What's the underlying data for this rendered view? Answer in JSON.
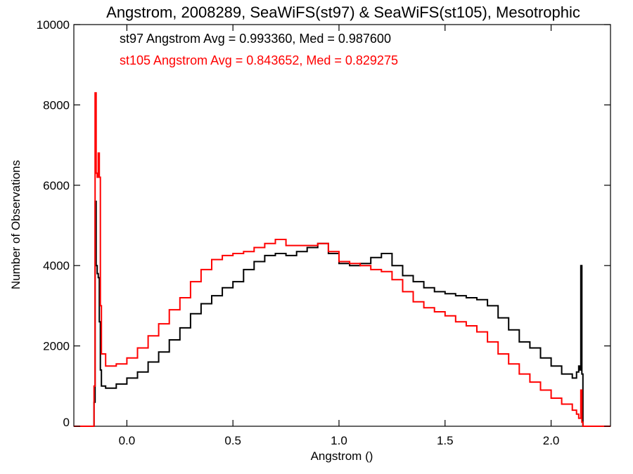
{
  "chart_data": {
    "type": "line",
    "title": "Angstrom, 2008289, SeaWiFS(st97) & SeaWiFS(st105), Mesotrophic",
    "xlabel": "Angstrom ()",
    "ylabel": "Number of Observations",
    "xlim": [
      -0.25,
      2.28
    ],
    "ylim": [
      0,
      10000
    ],
    "xticks": [
      "0.0",
      "0.5",
      "1.0",
      "1.5",
      "2.0"
    ],
    "xtick_values": [
      0.0,
      0.5,
      1.0,
      1.5,
      2.0
    ],
    "yticks": [
      "0",
      "2000",
      "4000",
      "6000",
      "8000",
      "10000"
    ],
    "ytick_values": [
      0,
      2000,
      4000,
      6000,
      8000,
      10000
    ],
    "grid": false,
    "annotations": [
      {
        "text": "st97 Angstrom Avg = 0.993360, Med = 0.987600",
        "color": "#000000"
      },
      {
        "text": "st105 Angstrom Avg = 0.843652, Med = 0.829275",
        "color": "#ff0000"
      }
    ],
    "series": [
      {
        "color": "#000000",
        "points": [
          [
            -0.25,
            0
          ],
          [
            -0.16,
            0
          ],
          [
            -0.155,
            600
          ],
          [
            -0.15,
            5600
          ],
          [
            -0.145,
            4000
          ],
          [
            -0.14,
            3800
          ],
          [
            -0.135,
            3700
          ],
          [
            -0.13,
            2600
          ],
          [
            -0.125,
            1400
          ],
          [
            -0.12,
            1000
          ],
          [
            -0.1,
            950
          ],
          [
            -0.05,
            1050
          ],
          [
            0.0,
            1200
          ],
          [
            0.05,
            1350
          ],
          [
            0.1,
            1600
          ],
          [
            0.15,
            1850
          ],
          [
            0.2,
            2150
          ],
          [
            0.25,
            2450
          ],
          [
            0.3,
            2800
          ],
          [
            0.35,
            3050
          ],
          [
            0.4,
            3250
          ],
          [
            0.45,
            3450
          ],
          [
            0.5,
            3600
          ],
          [
            0.55,
            3900
          ],
          [
            0.6,
            4100
          ],
          [
            0.65,
            4250
          ],
          [
            0.7,
            4300
          ],
          [
            0.75,
            4250
          ],
          [
            0.8,
            4350
          ],
          [
            0.85,
            4450
          ],
          [
            0.9,
            4550
          ],
          [
            0.95,
            4300
          ],
          [
            1.0,
            4050
          ],
          [
            1.05,
            4000
          ],
          [
            1.1,
            4050
          ],
          [
            1.15,
            4200
          ],
          [
            1.2,
            4300
          ],
          [
            1.25,
            4000
          ],
          [
            1.3,
            3750
          ],
          [
            1.35,
            3600
          ],
          [
            1.4,
            3450
          ],
          [
            1.45,
            3350
          ],
          [
            1.5,
            3300
          ],
          [
            1.55,
            3250
          ],
          [
            1.6,
            3200
          ],
          [
            1.65,
            3150
          ],
          [
            1.7,
            3000
          ],
          [
            1.75,
            2700
          ],
          [
            1.8,
            2400
          ],
          [
            1.85,
            2100
          ],
          [
            1.9,
            1950
          ],
          [
            1.95,
            1700
          ],
          [
            2.0,
            1500
          ],
          [
            2.05,
            1300
          ],
          [
            2.1,
            1200
          ],
          [
            2.12,
            1350
          ],
          [
            2.13,
            1500
          ],
          [
            2.135,
            1400
          ],
          [
            2.14,
            4000
          ],
          [
            2.145,
            1300
          ],
          [
            2.15,
            0
          ],
          [
            2.28,
            0
          ]
        ]
      },
      {
        "color": "#ff0000",
        "points": [
          [
            -0.25,
            0
          ],
          [
            -0.16,
            0
          ],
          [
            -0.155,
            1000
          ],
          [
            -0.15,
            8300
          ],
          [
            -0.145,
            6300
          ],
          [
            -0.14,
            6200
          ],
          [
            -0.135,
            6800
          ],
          [
            -0.13,
            6200
          ],
          [
            -0.125,
            3000
          ],
          [
            -0.12,
            1800
          ],
          [
            -0.1,
            1500
          ],
          [
            -0.05,
            1550
          ],
          [
            0.0,
            1700
          ],
          [
            0.05,
            1950
          ],
          [
            0.1,
            2250
          ],
          [
            0.15,
            2550
          ],
          [
            0.2,
            2900
          ],
          [
            0.25,
            3200
          ],
          [
            0.3,
            3600
          ],
          [
            0.35,
            3900
          ],
          [
            0.4,
            4150
          ],
          [
            0.45,
            4250
          ],
          [
            0.5,
            4300
          ],
          [
            0.55,
            4350
          ],
          [
            0.6,
            4450
          ],
          [
            0.65,
            4550
          ],
          [
            0.7,
            4650
          ],
          [
            0.75,
            4500
          ],
          [
            0.8,
            4500
          ],
          [
            0.85,
            4500
          ],
          [
            0.9,
            4550
          ],
          [
            0.95,
            4350
          ],
          [
            1.0,
            4100
          ],
          [
            1.05,
            4050
          ],
          [
            1.1,
            4000
          ],
          [
            1.15,
            3900
          ],
          [
            1.2,
            3850
          ],
          [
            1.25,
            3650
          ],
          [
            1.3,
            3350
          ],
          [
            1.35,
            3100
          ],
          [
            1.4,
            2950
          ],
          [
            1.45,
            2850
          ],
          [
            1.5,
            2750
          ],
          [
            1.55,
            2600
          ],
          [
            1.6,
            2500
          ],
          [
            1.65,
            2350
          ],
          [
            1.7,
            2100
          ],
          [
            1.75,
            1800
          ],
          [
            1.8,
            1550
          ],
          [
            1.85,
            1300
          ],
          [
            1.9,
            1100
          ],
          [
            1.95,
            900
          ],
          [
            2.0,
            700
          ],
          [
            2.05,
            550
          ],
          [
            2.1,
            400
          ],
          [
            2.12,
            300
          ],
          [
            2.13,
            200
          ],
          [
            2.14,
            900
          ],
          [
            2.145,
            100
          ],
          [
            2.15,
            0
          ],
          [
            2.28,
            0
          ]
        ]
      }
    ]
  }
}
